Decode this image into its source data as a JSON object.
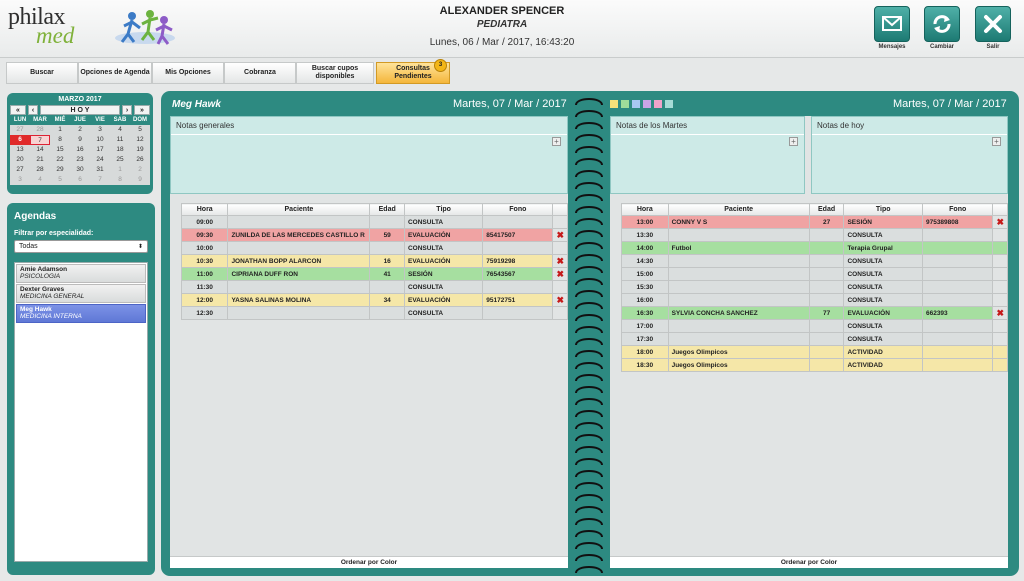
{
  "header": {
    "logo_top": "philax",
    "logo_bottom": "med",
    "doctor_name": "ALEXANDER SPENCER",
    "doctor_specialty": "PEDIATRA",
    "datetime": "Lunes, 06 / Mar / 2017, 16:43:20",
    "buttons": [
      {
        "label": "Mensajes",
        "icon": "mail-icon"
      },
      {
        "label": "Cambiar",
        "icon": "refresh-icon"
      },
      {
        "label": "Salir",
        "icon": "close-icon"
      }
    ]
  },
  "nav": {
    "items": [
      "Buscar",
      "Opciones de Agenda",
      "Mis Opciones",
      "Cobranza",
      "Buscar cupos disponibles",
      "Consultas Pendientes"
    ],
    "badge": "3"
  },
  "calendar": {
    "title": "MARZO 2017",
    "nav_today": "H O Y",
    "days": [
      "LUN",
      "MAR",
      "MIÉ",
      "JUE",
      "VIE",
      "SAB",
      "DOM"
    ],
    "weeks": [
      [
        "27",
        "28",
        "1",
        "2",
        "3",
        "4",
        "5"
      ],
      [
        "6",
        "7",
        "8",
        "9",
        "10",
        "11",
        "12"
      ],
      [
        "13",
        "14",
        "15",
        "16",
        "17",
        "18",
        "19"
      ],
      [
        "20",
        "21",
        "22",
        "23",
        "24",
        "25",
        "26"
      ],
      [
        "27",
        "28",
        "29",
        "30",
        "31",
        "1",
        "2"
      ],
      [
        "3",
        "4",
        "5",
        "6",
        "7",
        "8",
        "9"
      ]
    ]
  },
  "agendas": {
    "title": "Agendas",
    "filter_label": "Filtrar por especialidad:",
    "filter_value": "Todas",
    "items": [
      {
        "name": "Amie Adamson",
        "specialty": "PSICOLOGIA"
      },
      {
        "name": "Dexter Graves",
        "specialty": "MEDICINA GENERAL"
      },
      {
        "name": "Meg Hawk",
        "specialty": "MEDICINA INTERNA"
      }
    ]
  },
  "book": {
    "professional": "Meg Hawk",
    "date": "Martes, 07 / Mar / 2017",
    "swatch_colors": [
      "#f5e27a",
      "#9fdc9a",
      "#a7c8f2",
      "#c9a4e6",
      "#f0a3c9",
      "#a6dcd6"
    ],
    "notes_general": "Notas generales",
    "notes_tuesdays": "Notas de los Martes",
    "notes_today": "Notas de hoy",
    "order_label": "Ordenar por Color",
    "columns": {
      "hora": "Hora",
      "paciente": "Paciente",
      "edad": "Edad",
      "tipo": "Tipo",
      "fono": "Fono"
    },
    "left_rows": [
      {
        "hora": "09:00",
        "paciente": "",
        "edad": "",
        "tipo": "CONSULTA",
        "fono": "",
        "color": "",
        "x": false
      },
      {
        "hora": "09:30",
        "paciente": "ZUNILDA DE LAS MERCEDES CASTILLO R",
        "edad": "59",
        "tipo": "EVALUACIÓN",
        "fono": "85417507",
        "color": "r",
        "x": true
      },
      {
        "hora": "10:00",
        "paciente": "",
        "edad": "",
        "tipo": "CONSULTA",
        "fono": "",
        "color": "",
        "x": false
      },
      {
        "hora": "10:30",
        "paciente": "JONATHAN BOPP ALARCON",
        "edad": "16",
        "tipo": "EVALUACIÓN",
        "fono": "75919298",
        "color": "y",
        "x": true
      },
      {
        "hora": "11:00",
        "paciente": "CIPRIANA DUFF RON",
        "edad": "41",
        "tipo": "SESIÓN",
        "fono": "76543567",
        "color": "g",
        "x": true
      },
      {
        "hora": "11:30",
        "paciente": "",
        "edad": "",
        "tipo": "CONSULTA",
        "fono": "",
        "color": "",
        "x": false
      },
      {
        "hora": "12:00",
        "paciente": "YASNA SALINAS MOLINA",
        "edad": "34",
        "tipo": "EVALUACIÓN",
        "fono": "95172751",
        "color": "y",
        "x": true
      },
      {
        "hora": "12:30",
        "paciente": "",
        "edad": "",
        "tipo": "CONSULTA",
        "fono": "",
        "color": "",
        "x": false
      }
    ],
    "right_rows": [
      {
        "hora": "13:00",
        "paciente": "CONNY V S",
        "edad": "27",
        "tipo": "SESIÓN",
        "fono": "975389808",
        "color": "r",
        "x": true
      },
      {
        "hora": "13:30",
        "paciente": "",
        "edad": "",
        "tipo": "CONSULTA",
        "fono": "",
        "color": "",
        "x": false
      },
      {
        "hora": "14:00",
        "paciente": "Futbol",
        "edad": "",
        "tipo": "Terapia Grupal",
        "fono": "",
        "color": "g",
        "x": false
      },
      {
        "hora": "14:30",
        "paciente": "",
        "edad": "",
        "tipo": "CONSULTA",
        "fono": "",
        "color": "",
        "x": false
      },
      {
        "hora": "15:00",
        "paciente": "",
        "edad": "",
        "tipo": "CONSULTA",
        "fono": "",
        "color": "",
        "x": false
      },
      {
        "hora": "15:30",
        "paciente": "",
        "edad": "",
        "tipo": "CONSULTA",
        "fono": "",
        "color": "",
        "x": false
      },
      {
        "hora": "16:00",
        "paciente": "",
        "edad": "",
        "tipo": "CONSULTA",
        "fono": "",
        "color": "",
        "x": false
      },
      {
        "hora": "16:30",
        "paciente": "SYLVIA CONCHA SANCHEZ",
        "edad": "77",
        "tipo": "EVALUACIÓN",
        "fono": "662393",
        "color": "g",
        "x": true
      },
      {
        "hora": "17:00",
        "paciente": "",
        "edad": "",
        "tipo": "CONSULTA",
        "fono": "",
        "color": "",
        "x": false
      },
      {
        "hora": "17:30",
        "paciente": "",
        "edad": "",
        "tipo": "CONSULTA",
        "fono": "",
        "color": "",
        "x": false
      },
      {
        "hora": "18:00",
        "paciente": "Juegos Olimpicos",
        "edad": "",
        "tipo": "ACTIVIDAD",
        "fono": "",
        "color": "y",
        "x": false
      },
      {
        "hora": "18:30",
        "paciente": "Juegos Olimpicos",
        "edad": "",
        "tipo": "ACTIVIDAD",
        "fono": "",
        "color": "y",
        "x": false
      }
    ]
  }
}
